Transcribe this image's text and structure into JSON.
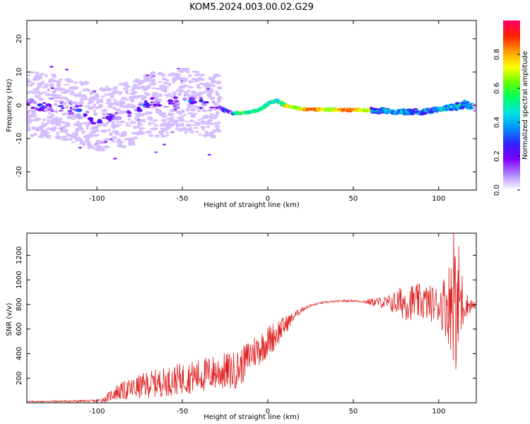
{
  "title": "KOM5.2024.003.00.02.G29",
  "chart_data": [
    {
      "type": "heatmap",
      "panel": "top",
      "xlabel": "Height of straight line (km)",
      "ylabel": "Frequency (Hz)",
      "xlim": [
        -141,
        122
      ],
      "ylim": [
        -25.5,
        25.5
      ],
      "xticks": [
        -100,
        -50,
        0,
        50,
        100
      ],
      "yticks": [
        -20,
        -10,
        0,
        10,
        20
      ],
      "colorbar": {
        "label": "Normalized spectral amplitude",
        "range": [
          0,
          1
        ],
        "ticks": [
          "0.0",
          "0.2",
          "0.4",
          "0.6",
          "0.8"
        ],
        "ticks_num": [
          0,
          0.2,
          0.4,
          0.6,
          0.8
        ],
        "colormap": [
          "#ffffff",
          "#b088ff",
          "#7f00ff",
          "#3020ff",
          "#0090ff",
          "#00e0e0",
          "#00ff66",
          "#66ff00",
          "#ffff00",
          "#ff9900",
          "#ff2000",
          "#ff0066"
        ]
      },
      "ridge": [
        [
          -141,
          0.5
        ],
        [
          -125,
          -0.2
        ],
        [
          -110,
          -2.0
        ],
        [
          -100,
          -4.0
        ],
        [
          -90,
          -3.5
        ],
        [
          -80,
          -2.5
        ],
        [
          -70,
          0.5
        ],
        [
          -60,
          0.0
        ],
        [
          -50,
          1.5
        ],
        [
          -40,
          0.8
        ],
        [
          -30,
          -0.5
        ],
        [
          -20,
          -2.5
        ],
        [
          -10,
          -2.0
        ],
        [
          -5,
          -1.5
        ],
        [
          0,
          0.5
        ],
        [
          5,
          1.5
        ],
        [
          10,
          0.0
        ],
        [
          20,
          -1.2
        ],
        [
          40,
          -1.3
        ],
        [
          60,
          -1.5
        ],
        [
          80,
          -2.0
        ],
        [
          90,
          -2.0
        ],
        [
          100,
          -1.0
        ],
        [
          110,
          -0.5
        ],
        [
          115,
          0.5
        ],
        [
          122,
          -1.0
        ]
      ]
    },
    {
      "type": "line",
      "panel": "bottom",
      "xlabel": "Height of straight line (km)",
      "ylabel": "SNR (v/v)",
      "xlim": [
        -141,
        122
      ],
      "ylim": [
        0,
        1380
      ],
      "xticks": [
        -100,
        -50,
        0,
        50,
        100
      ],
      "yticks": [
        200,
        400,
        600,
        800,
        1000,
        1200
      ],
      "color": "#e02020",
      "envelope": {
        "x": [
          -141,
          -100,
          -95,
          -90,
          -80,
          -70,
          -60,
          -50,
          -40,
          -30,
          -20,
          -15,
          -10,
          -5,
          0,
          5,
          10,
          15,
          20,
          25,
          30,
          35,
          40,
          45,
          50,
          55,
          60,
          65,
          70,
          80,
          90,
          100,
          105,
          108,
          110,
          112,
          115,
          122
        ],
        "y": [
          10,
          15,
          30,
          80,
          110,
          150,
          170,
          200,
          220,
          250,
          260,
          300,
          400,
          440,
          500,
          560,
          630,
          700,
          760,
          790,
          810,
          820,
          825,
          830,
          830,
          825,
          820,
          820,
          810,
          820,
          820,
          800,
          800,
          820,
          800,
          820,
          800,
          790
        ],
        "noise": [
          5,
          10,
          25,
          60,
          90,
          110,
          120,
          130,
          140,
          150,
          160,
          150,
          140,
          140,
          130,
          120,
          80,
          40,
          20,
          10,
          8,
          8,
          8,
          8,
          8,
          8,
          30,
          40,
          60,
          150,
          150,
          150,
          300,
          450,
          550,
          500,
          120,
          15
        ]
      }
    }
  ]
}
